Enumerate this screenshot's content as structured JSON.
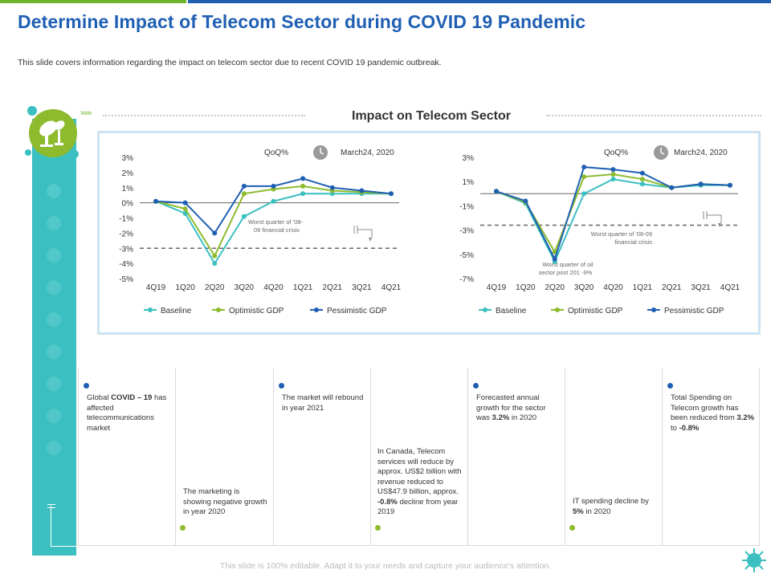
{
  "title": "Determine Impact of Telecom Sector during COVID 19 Pandemic",
  "subtitle": "This slide covers information regarding the impact on telecom sector due to recent COVID 19 pandemic outbreak.",
  "section_title": "Impact on Telecom Sector",
  "footer": "This slide is 100% editable. Adapt it to your needs and capture your audience's attention.",
  "colors": {
    "baseline": "#3bbfc0",
    "optimistic": "#8dbb2d",
    "pessimistic": "#1f5fb3",
    "title": "#1f5fb3"
  },
  "chart_data": [
    {
      "type": "line",
      "header_label": "QoQ%",
      "date_label": "March24, 2020",
      "categories": [
        "4Q19",
        "1Q20",
        "2Q20",
        "3Q20",
        "4Q20",
        "1Q21",
        "2Q21",
        "3Q21",
        "4Q21"
      ],
      "y_ticks": [
        "3%",
        "2%",
        "1%",
        "0%",
        "-1%",
        "-2%",
        "-3%",
        "-4%",
        "-5%"
      ],
      "ylim": [
        -5,
        3
      ],
      "series": [
        {
          "name": "Baseline",
          "values": [
            0.1,
            -0.7,
            -4.0,
            -0.9,
            0.1,
            0.6,
            0.6,
            0.6,
            0.6
          ]
        },
        {
          "name": "Optimistic GDP",
          "values": [
            0.1,
            -0.4,
            -3.5,
            0.6,
            0.9,
            1.1,
            0.8,
            0.7,
            0.6
          ]
        },
        {
          "name": "Pessimistic GDP",
          "values": [
            0.1,
            0.0,
            -2.0,
            1.1,
            1.1,
            1.6,
            1.0,
            0.8,
            0.6
          ]
        }
      ],
      "reference_line": {
        "value": -3.0,
        "label": "Worst quarter of '08-09 financial crisis"
      }
    },
    {
      "type": "line",
      "header_label": "QoQ%",
      "date_label": "March24, 2020",
      "categories": [
        "4Q19",
        "1Q20",
        "2Q20",
        "3Q20",
        "4Q20",
        "1Q21",
        "2Q21",
        "3Q21",
        "4Q21"
      ],
      "y_ticks": [
        "3%",
        "1%",
        "-1%",
        "-3%",
        "-5%",
        "-7%"
      ],
      "ylim": [
        -7,
        3
      ],
      "series": [
        {
          "name": "Baseline",
          "values": [
            0.2,
            -0.8,
            -5.6,
            0.0,
            1.2,
            0.8,
            0.5,
            0.7,
            0.7
          ]
        },
        {
          "name": "Optimistic GDP",
          "values": [
            0.2,
            -0.7,
            -4.8,
            1.4,
            1.6,
            1.2,
            0.5,
            0.8,
            0.7
          ]
        },
        {
          "name": "Pessimistic GDP",
          "values": [
            0.2,
            -0.6,
            -5.4,
            2.2,
            2.0,
            1.7,
            0.5,
            0.8,
            0.7
          ]
        }
      ],
      "reference_line": {
        "value": -2.6,
        "label": "Worst quarter of '08-09 financial crisis"
      },
      "annotation": "Worst quarter of oil sector post 201 -9%"
    }
  ],
  "cards": [
    {
      "parts": [
        {
          "t": "Global "
        },
        {
          "t": "COVID – 19",
          "b": true
        },
        {
          "t": " has affected telecommunications market"
        }
      ]
    },
    {
      "parts": [
        {
          "t": "The marketing is showing negative growth in year 2020"
        }
      ]
    },
    {
      "parts": [
        {
          "t": "The market will rebound in year 2021"
        }
      ]
    },
    {
      "parts": [
        {
          "t": "In Canada, Telecom services will reduce by approx. US$2 billion with revenue reduced to US$47.9 billion, approx. "
        },
        {
          "t": "-0.8%",
          "b": true
        },
        {
          "t": " decline from year 2019"
        }
      ]
    },
    {
      "parts": [
        {
          "t": "Forecasted annual growth for the sector was "
        },
        {
          "t": "3.2%",
          "b": true
        },
        {
          "t": " in 2020"
        }
      ]
    },
    {
      "parts": [
        {
          "t": "IT spending decline by "
        },
        {
          "t": "5%",
          "b": true
        },
        {
          "t": " in 2020"
        }
      ]
    },
    {
      "parts": [
        {
          "t": "Total Spending on Telecom growth has been reduced from "
        },
        {
          "t": "3.2%",
          "b": true
        },
        {
          "t": " to "
        },
        {
          "t": "-0.8%",
          "b": true
        }
      ]
    }
  ]
}
